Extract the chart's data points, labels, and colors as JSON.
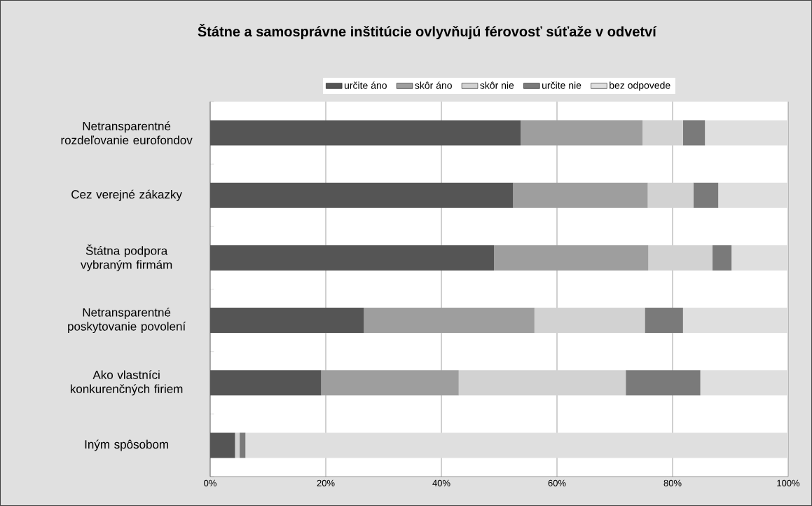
{
  "chart_data": {
    "type": "bar",
    "orientation": "horizontal",
    "stacked": true,
    "title": "Štátne a samosprávne inštitúcie ovlyvňujú férovosť súťaže v odvetví",
    "categories": [
      "Netransparentné rozdeľovanie eurofondov",
      "Cez verejné zákazky",
      "Štátna podpora vybraným firmám",
      "Netransparentné poskytovanie povolení",
      "Ako vlastníci konkurenčných firiem",
      "Iným spôsobom"
    ],
    "series": [
      {
        "name": "určite áno",
        "color": "#555555",
        "values": [
          53.7,
          52.4,
          49.1,
          26.6,
          19.2,
          4.3
        ]
      },
      {
        "name": "skôr áno",
        "color": "#9e9e9e",
        "values": [
          21.1,
          23.3,
          26.7,
          29.5,
          23.8,
          0
        ]
      },
      {
        "name": "skôr nie",
        "color": "#d2d2d2",
        "values": [
          7.0,
          7.9,
          11.1,
          19.1,
          28.9,
          0.8
        ]
      },
      {
        "name": "určite nie",
        "color": "#7a7a7a",
        "values": [
          3.8,
          4.3,
          3.3,
          6.6,
          12.9,
          1.0
        ]
      },
      {
        "name": "bez odpovede",
        "color": "#dfdfdf",
        "values": [
          14.4,
          12.1,
          9.8,
          18.2,
          15.2,
          93.9
        ]
      }
    ],
    "xlim": [
      0,
      100
    ],
    "xticks": [
      {
        "value": 0,
        "label": "0%"
      },
      {
        "value": 20,
        "label": "20%"
      },
      {
        "value": 40,
        "label": "40%"
      },
      {
        "value": 60,
        "label": "60%"
      },
      {
        "value": 80,
        "label": "80%"
      },
      {
        "value": 100,
        "label": "100%"
      }
    ],
    "grid": "x",
    "legend": "top"
  }
}
